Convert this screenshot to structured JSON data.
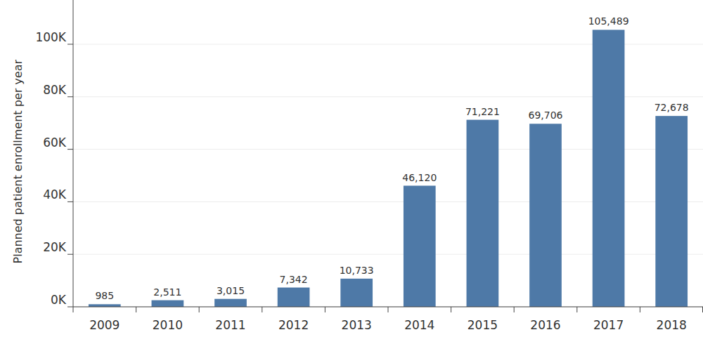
{
  "chart_data": {
    "type": "bar",
    "y_label": "Planned patient enrollment per year",
    "categories": [
      "2009",
      "2010",
      "2011",
      "2012",
      "2013",
      "2014",
      "2015",
      "2016",
      "2017",
      "2018"
    ],
    "values": [
      985,
      2511,
      3015,
      7342,
      10733,
      46120,
      71221,
      69706,
      105489,
      72678
    ],
    "value_labels": [
      "985",
      "2,511",
      "3,015",
      "7,342",
      "10,733",
      "46,120",
      "71,221",
      "69,706",
      "105,489",
      "72,678"
    ],
    "color": "#4e79a7",
    "ylim": [
      0,
      117000
    ],
    "yticks": [
      {
        "value": 0,
        "label": "0K"
      },
      {
        "value": 20000,
        "label": "20K"
      },
      {
        "value": 40000,
        "label": "40K"
      },
      {
        "value": 60000,
        "label": "60K"
      },
      {
        "value": 80000,
        "label": "80K"
      },
      {
        "value": 100000,
        "label": "100K"
      }
    ],
    "grid": true,
    "data_labels": true
  }
}
